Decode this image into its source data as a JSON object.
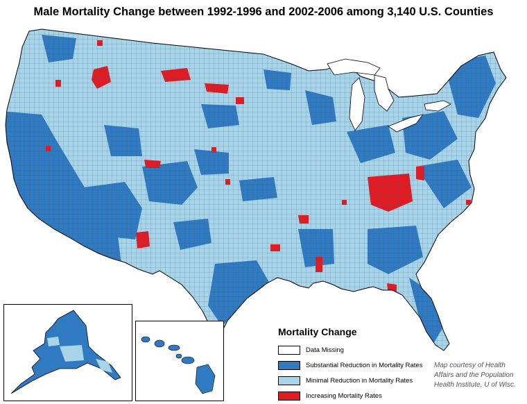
{
  "title": "Male Mortality  Change between 1992-1996 and 2002-2006 among 3,140 U.S. Counties",
  "legend": {
    "title": "Mortality Change",
    "items": [
      {
        "label": "Data Missing",
        "color": "#ffffff"
      },
      {
        "label": "Substantial Reduction in Mortality Rates",
        "color": "#2f7ac0"
      },
      {
        "label": "Minimal  Reduction in Mortality Rates",
        "color": "#a8d4ea"
      },
      {
        "label": "Increasing Mortality Rates",
        "color": "#e21b22"
      }
    ]
  },
  "credit": "Map courtesy of Health Affairs and the Population Health Institute, U of Wisc.",
  "colors": {
    "substantial": "#2f7ac0",
    "minimal": "#a8d4ea",
    "increasing": "#e21b22",
    "county_border": "#3b5f7a"
  }
}
